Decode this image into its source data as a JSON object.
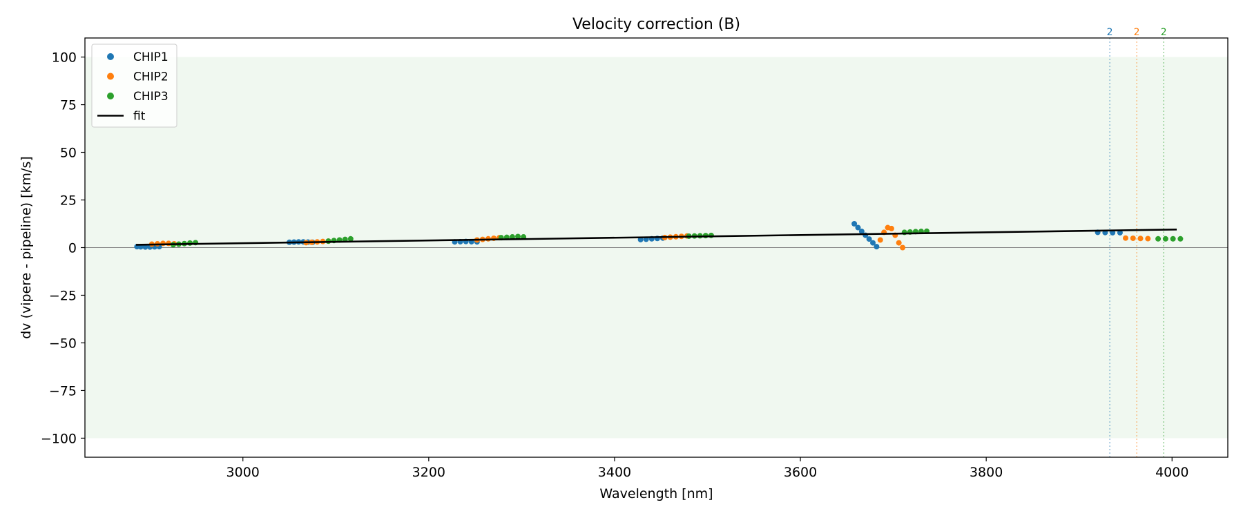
{
  "chart_data": {
    "type": "scatter",
    "title": "Velocity correction (B)",
    "xlabel": "Wavelength [nm]",
    "ylabel": "dv (vipere - pipeline) [km/s]",
    "xlim": [
      2830,
      4060
    ],
    "ylim": [
      -110,
      110
    ],
    "xticks": [
      3000,
      3200,
      3400,
      3600,
      3800,
      4000
    ],
    "xtick_labels": [
      "3000",
      "3200",
      "3400",
      "3600",
      "3800",
      "4000"
    ],
    "yticks": [
      100,
      75,
      50,
      25,
      0,
      -25,
      -50,
      -75,
      -100
    ],
    "ytick_labels": [
      "100",
      "75",
      "50",
      "25",
      "0",
      "−25",
      "−50",
      "−75",
      "−100"
    ],
    "shaded_band": [
      -100,
      100
    ],
    "reference_line_y": 0,
    "legend_placement": "top-left",
    "series": [
      {
        "name": "CHIP1",
        "color": "#1f77b4",
        "x": [
          2886,
          2890,
          2895,
          2900,
          2905,
          2910,
          3050,
          3055,
          3060,
          3065,
          3070,
          3075,
          3228,
          3234,
          3240,
          3246,
          3252,
          3428,
          3434,
          3440,
          3446,
          3452,
          3658,
          3662,
          3666,
          3670,
          3674,
          3678,
          3682,
          3920,
          3928,
          3936,
          3944
        ],
        "y": [
          0.5,
          0.4,
          0.3,
          0.3,
          0.4,
          0.5,
          2.8,
          2.9,
          3.0,
          3.0,
          2.9,
          2.8,
          3.0,
          3.1,
          3.2,
          3.1,
          3.0,
          4.2,
          4.4,
          4.6,
          4.8,
          5.0,
          12.5,
          10.5,
          8.5,
          6.5,
          4.5,
          2.5,
          0.5,
          8.0,
          7.9,
          7.8,
          7.8
        ]
      },
      {
        "name": "CHIP2",
        "color": "#ff7f0e",
        "x": [
          2902,
          2908,
          2914,
          2920,
          2926,
          3068,
          3074,
          3080,
          3086,
          3092,
          3252,
          3258,
          3264,
          3270,
          3276,
          3454,
          3460,
          3466,
          3472,
          3478,
          3686,
          3690,
          3694,
          3698,
          3702,
          3706,
          3710,
          3950,
          3958,
          3966,
          3974
        ],
        "y": [
          1.8,
          2.0,
          2.2,
          2.2,
          2.0,
          2.6,
          2.8,
          3.0,
          3.2,
          3.4,
          4.0,
          4.3,
          4.6,
          4.9,
          5.2,
          5.3,
          5.5,
          5.7,
          5.9,
          6.1,
          4.0,
          8.0,
          10.5,
          10.0,
          6.5,
          2.5,
          0.0,
          5.0,
          4.9,
          4.8,
          4.7
        ]
      },
      {
        "name": "CHIP3",
        "color": "#2ca02c",
        "x": [
          2925,
          2931,
          2937,
          2943,
          2949,
          3092,
          3098,
          3104,
          3110,
          3116,
          3278,
          3284,
          3290,
          3296,
          3302,
          3480,
          3486,
          3492,
          3498,
          3504,
          3712,
          3718,
          3724,
          3730,
          3736,
          3985,
          3993,
          4001,
          4009
        ],
        "y": [
          1.5,
          1.8,
          2.1,
          2.4,
          2.6,
          3.4,
          3.7,
          4.0,
          4.3,
          4.6,
          5.2,
          5.4,
          5.6,
          5.8,
          5.6,
          6.0,
          6.1,
          6.2,
          6.3,
          6.4,
          8.0,
          8.2,
          8.4,
          8.5,
          8.6,
          4.6,
          4.6,
          4.6,
          4.6
        ]
      },
      {
        "name": "fit",
        "type": "line",
        "color": "#000000",
        "x": [
          2885,
          4005
        ],
        "y": [
          1.5,
          9.5
        ]
      }
    ],
    "vertical_markers": [
      {
        "x": 3933,
        "label": "2",
        "color": "#1f77b4"
      },
      {
        "x": 3962,
        "label": "2",
        "color": "#ff7f0e"
      },
      {
        "x": 3991,
        "label": "2",
        "color": "#2ca02c"
      }
    ]
  }
}
